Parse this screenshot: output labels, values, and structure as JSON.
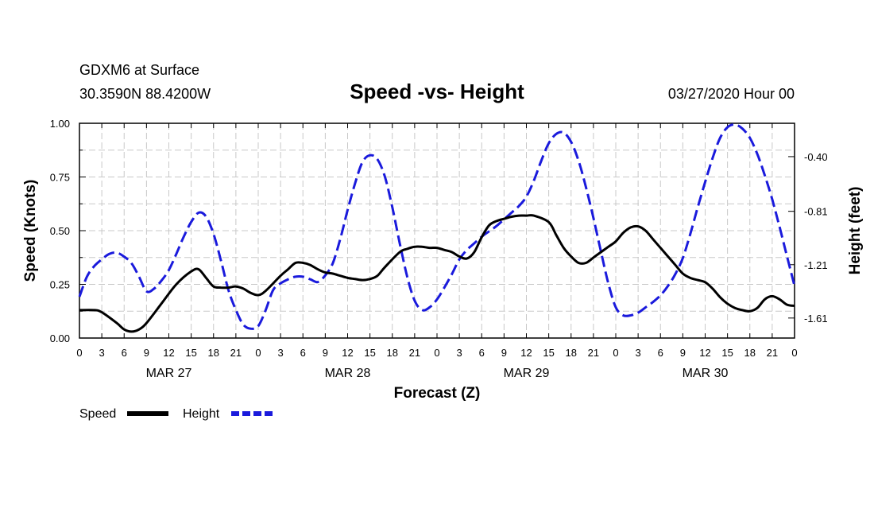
{
  "header": {
    "station": "GDXM6 at Surface",
    "coords": "30.3590N 88.4200W",
    "title": "Speed -vs- Height",
    "datetime": "03/27/2020 Hour 00"
  },
  "chart_data": {
    "type": "line",
    "title": "Speed -vs- Height",
    "xlabel": "Forecast (Z)",
    "ylabel_left": "Speed (Knots)",
    "ylabel_right": "Height (feet)",
    "x_unit": "hours from 03/27/2020 00Z",
    "xlim": [
      0,
      96
    ],
    "x_tick_step": 3,
    "x_tick_labels": [
      "0",
      "3",
      "6",
      "9",
      "12",
      "15",
      "18",
      "21",
      "0",
      "3",
      "6",
      "9",
      "12",
      "15",
      "18",
      "21",
      "0",
      "3",
      "6",
      "9",
      "12",
      "15",
      "18",
      "21",
      "0",
      "3",
      "6",
      "9",
      "12",
      "15",
      "18",
      "21",
      "0"
    ],
    "date_labels": [
      {
        "label": "MAR 27",
        "hour": 12
      },
      {
        "label": "MAR 28",
        "hour": 36
      },
      {
        "label": "MAR 29",
        "hour": 60
      },
      {
        "label": "MAR 30",
        "hour": 84
      }
    ],
    "ylim_left": [
      0,
      1
    ],
    "y_ticks_left": [
      "0.00",
      "0.25",
      "0.50",
      "0.75",
      "1.00"
    ],
    "ylim_right": [
      -1.76,
      -0.15
    ],
    "y_ticks_right": [
      {
        "label": "-0.40",
        "value": -0.4
      },
      {
        "label": "-0.81",
        "value": -0.81
      },
      {
        "label": "-1.21",
        "value": -1.21
      },
      {
        "label": "-1.61",
        "value": -1.61
      }
    ],
    "grid": true,
    "series": [
      {
        "name": "Speed",
        "axis": "left",
        "color": "#000000",
        "style": "solid",
        "x": [
          0,
          2,
          3,
          5,
          6,
          7,
          8,
          9,
          11,
          13,
          15,
          16,
          17,
          18,
          19,
          20,
          21,
          22,
          23,
          24,
          25,
          27,
          28,
          29,
          30,
          31,
          32,
          33,
          34,
          35,
          36,
          37,
          38,
          39,
          40,
          41,
          43,
          44,
          45,
          46,
          47,
          48,
          49,
          50,
          51,
          52,
          53,
          54,
          55,
          56,
          57,
          58,
          59,
          60,
          61,
          63,
          64,
          65,
          66,
          67,
          68,
          69,
          70,
          71,
          72,
          73,
          74,
          75,
          76,
          77,
          78,
          79,
          80,
          81,
          82,
          83,
          84,
          85,
          86,
          87,
          88,
          89,
          90,
          91,
          92,
          93,
          94,
          95,
          96
        ],
        "values": [
          0.13,
          0.13,
          0.12,
          0.07,
          0.04,
          0.03,
          0.04,
          0.07,
          0.16,
          0.25,
          0.31,
          0.32,
          0.28,
          0.24,
          0.235,
          0.235,
          0.24,
          0.23,
          0.21,
          0.2,
          0.22,
          0.29,
          0.32,
          0.35,
          0.35,
          0.34,
          0.32,
          0.305,
          0.3,
          0.29,
          0.28,
          0.275,
          0.27,
          0.275,
          0.29,
          0.33,
          0.4,
          0.415,
          0.425,
          0.425,
          0.42,
          0.42,
          0.41,
          0.4,
          0.38,
          0.37,
          0.4,
          0.47,
          0.525,
          0.545,
          0.555,
          0.565,
          0.57,
          0.57,
          0.57,
          0.54,
          0.48,
          0.42,
          0.38,
          0.35,
          0.35,
          0.375,
          0.4,
          0.425,
          0.45,
          0.49,
          0.515,
          0.52,
          0.5,
          0.46,
          0.42,
          0.38,
          0.34,
          0.3,
          0.28,
          0.27,
          0.26,
          0.23,
          0.19,
          0.16,
          0.14,
          0.13,
          0.125,
          0.14,
          0.18,
          0.195,
          0.18,
          0.155,
          0.15
        ]
      },
      {
        "name": "Height",
        "axis": "right",
        "color": "#1a1adc",
        "style": "dashed",
        "x": [
          0,
          1,
          2,
          3,
          4,
          5,
          6,
          7,
          8,
          9,
          10,
          11,
          12,
          13,
          14,
          15,
          16,
          17,
          18,
          19,
          20,
          21,
          22,
          23,
          24,
          25,
          26,
          27,
          28,
          29,
          30,
          31,
          32,
          33,
          34,
          35,
          36,
          37,
          38,
          39,
          40,
          41,
          42,
          43,
          44,
          45,
          46,
          47,
          48,
          49,
          50,
          51,
          52,
          53,
          54,
          55,
          56,
          57,
          58,
          59,
          60,
          61,
          62,
          63,
          64,
          65,
          66,
          67,
          68,
          69,
          70,
          71,
          72,
          73,
          74,
          75,
          76,
          77,
          78,
          79,
          80,
          81,
          82,
          83,
          84,
          85,
          86,
          87,
          88,
          89,
          90,
          91,
          92,
          93,
          94,
          95,
          96
        ],
        "values": [
          -1.45,
          -1.3,
          -1.22,
          -1.17,
          -1.13,
          -1.12,
          -1.15,
          -1.2,
          -1.3,
          -1.41,
          -1.39,
          -1.33,
          -1.25,
          -1.13,
          -1.0,
          -0.89,
          -0.82,
          -0.85,
          -0.98,
          -1.18,
          -1.4,
          -1.55,
          -1.66,
          -1.69,
          -1.67,
          -1.55,
          -1.4,
          -1.35,
          -1.32,
          -1.3,
          -1.3,
          -1.32,
          -1.34,
          -1.29,
          -1.2,
          -1.02,
          -0.8,
          -0.6,
          -0.44,
          -0.39,
          -0.42,
          -0.55,
          -0.78,
          -1.05,
          -1.3,
          -1.48,
          -1.55,
          -1.53,
          -1.47,
          -1.38,
          -1.28,
          -1.17,
          -1.1,
          -1.05,
          -1.0,
          -0.96,
          -0.92,
          -0.87,
          -0.82,
          -0.77,
          -0.7,
          -0.58,
          -0.43,
          -0.3,
          -0.23,
          -0.22,
          -0.29,
          -0.43,
          -0.63,
          -0.86,
          -1.11,
          -1.35,
          -1.53,
          -1.59,
          -1.59,
          -1.57,
          -1.53,
          -1.49,
          -1.44,
          -1.37,
          -1.28,
          -1.16,
          -0.98,
          -0.78,
          -0.59,
          -0.41,
          -0.26,
          -0.18,
          -0.16,
          -0.19,
          -0.26,
          -0.38,
          -0.54,
          -0.72,
          -0.93,
          -1.15,
          -1.37
        ]
      }
    ],
    "legend": [
      {
        "label": "Speed",
        "color": "#000000",
        "style": "solid"
      },
      {
        "label": "Height",
        "color": "#1a1adc",
        "style": "dashed"
      }
    ],
    "legend_position": "bottom-left"
  }
}
